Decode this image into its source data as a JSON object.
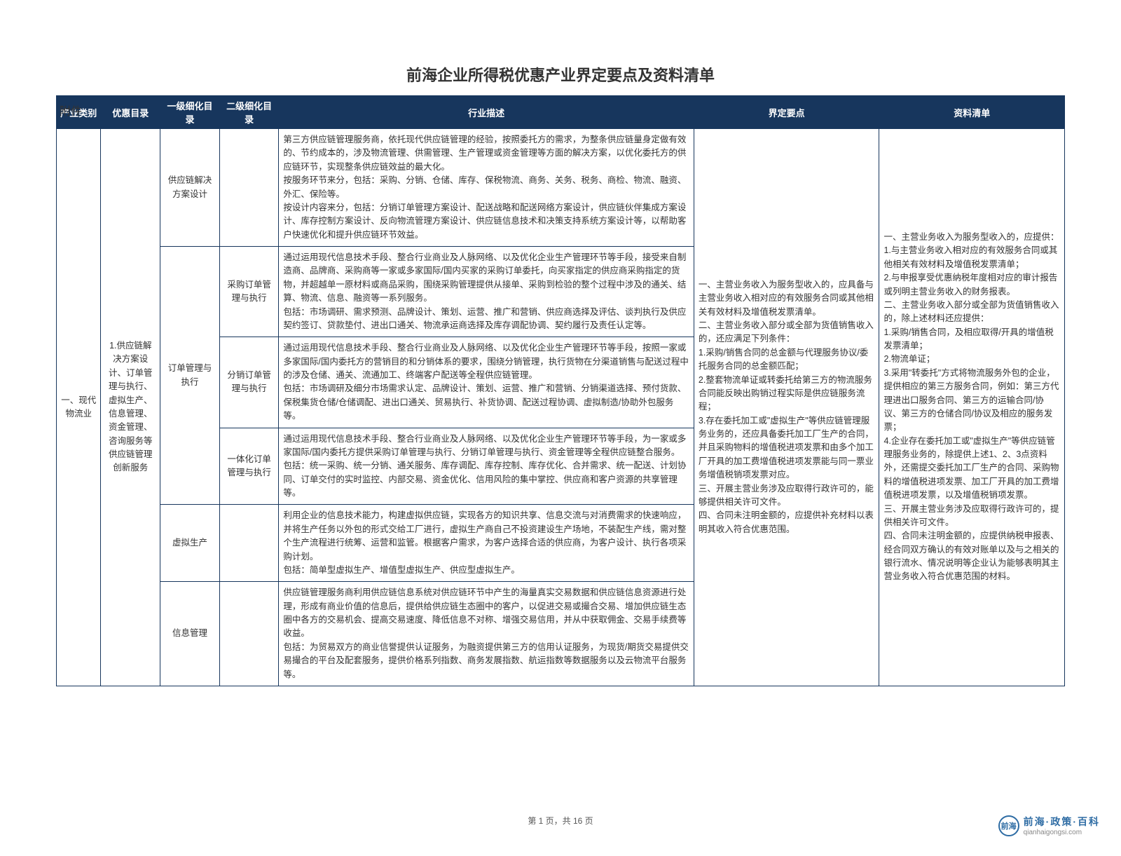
{
  "attachment_label": "附件",
  "title": "前海企业所得税优惠产业界定要点及资料清单",
  "header": {
    "col_category": "产业类别",
    "col_preference": "优惠目录",
    "col_level1": "一级细化目录",
    "col_level2": "二级细化目录",
    "col_desc": "行业描述",
    "col_keypoints": "界定要点",
    "col_docs": "资料清单"
  },
  "category": "一、现代物流业",
  "preference": "1.供应链解决方案设计、订单管理与执行、虚拟生产、信息管理、资金管理、咨询服务等供应链管理创新服务",
  "level1_a": "供应链解决方案设计",
  "level1_b": "订单管理与执行",
  "level1_c": "虚拟生产",
  "level1_d": "信息管理",
  "level2_b1": "采购订单管理与执行",
  "level2_b2": "分销订单管理与执行",
  "level2_b3": "一体化订单管理与执行",
  "desc_a": "第三方供应链管理服务商，依托现代供应链管理的经验，按照委托方的需求，为整条供应链量身定做有效的、节约成本的，涉及物流管理、供需管理、生产管理或资金管理等方面的解决方案，以优化委托方的供应链环节，实现整条供应链效益的最大化。\n按服务环节来分，包括：采购、分销、仓储、库存、保税物流、商务、关务、税务、商检、物流、融资、外汇、保险等。\n按设计内容来分，包括：分销订单管理方案设计、配送战略和配送网络方案设计，供应链伙伴集成方案设计、库存控制方案设计、反向物流管理方案设计、供应链信息技术和决策支持系统方案设计等，以帮助客户快速优化和提升供应链环节效益。",
  "desc_b1": "通过运用现代信息技术手段、整合行业商业及人脉网络、以及优化企业生产管理环节等手段，接受来自制造商、品牌商、采购商等一家或多家国际/国内买家的采购订单委托，向买家指定的供应商采购指定的货物，并超越单一原材料或商品采购，围绕采购管理提供从接单、采购到检验的整个过程中涉及的通关、结算、物流、信息、融资等一系列服务。\n包括：市场调研、需求预测、品牌设计、策划、运营、推广和营销、供应商选择及评估、谈判执行及供应契约签订、贷款垫付、进出口通关、物流承运商选择及库存调配协调、契约履行及责任认定等。",
  "desc_b2": "通过运用现代信息技术手段、整合行业商业及人脉网络、以及优化企业生产管理环节等手段，按照一家或多家国际/国内委托方的营销目的和分销体系的要求，围绕分销管理，执行货物在分渠道销售与配送过程中的涉及仓储、通关、流通加工、终端客户配送等全程供应链管理。\n包括：市场调研及细分市场需求认定、品牌设计、策划、运营、推广和营销、分销渠道选择、预付货款、保税集货仓储/仓储调配、进出口通关、贸易执行、补货协调、配送过程协调、虚拟制造/协助外包服务等。",
  "desc_b3": "通过运用现代信息技术手段、整合行业商业及人脉网络、以及优化企业生产管理环节等手段，为一家或多家国际/国内委托方提供采购订单管理与执行、分销订单管理与执行、资金管理等全程供应链整合服务。\n包括：统一采购、统一分销、通关服务、库存调配、库存控制、库存优化、合并需求、统一配送、计划协同、订单交付的实时监控、内部交易、资金优化、信用风险的集中掌控、供应商和客户资源的共享管理等。",
  "desc_c": "利用企业的信息技术能力，构建虚拟供应链，实现各方的知识共享、信息交流与对消费需求的快速响应，并将生产任务以外包的形式交给工厂进行，虚拟生产商自己不投资建设生产场地，不装配生产线，需对整个生产流程进行统筹、运营和监管。根据客户需求，为客户选择合适的供应商，为客户设计、执行各项采购计划。\n包括：简单型虚拟生产、增值型虚拟生产、供应型虚拟生产。",
  "desc_d": "供应链管理服务商利用供应链信息系统对供应链环节中产生的海量真实交易数据和供应链信息资源进行处理，形成有商业价值的信息后，提供给供应链生态圈中的客户，以促进交易或撮合交易、增加供应链生态圈中各方的交易机会、提高交易速度、降低信息不对称、增强交易信用，并从中获取佣金、交易手续费等收益。\n包括：为贸易双方的商业信誉提供认证服务，为融资提供第三方的信用认证服务，为现货/期货交易提供交易撮合的平台及配套服务，提供价格系列指数、商务发展指数、航运指数等数据服务以及云物流平台服务等。",
  "keypoints": "一、主营业务收入为服务型收入的，应具备与主营业务收入相对应的有效服务合同或其他相关有效材料及增值税发票清单。\n二、主营业务收入部分或全部为货值销售收入的，还应满足下列条件：\n1.采购/销售合同的总金额与代理服务协议/委托服务合同的总金额匹配；\n2.整套物流单证或转委托给第三方的物流服务合同能反映出购销过程实际是供应链服务流程；\n3.存在委托加工或\"虚拟生产\"等供应链管理服务业务的，还应具备委托加工厂生产的合同，并且采购物料的增值税进项发票和由多个加工厂开具的加工费增值税进项发票能与同一票业务增值税销项发票对应。\n三、开展主营业务涉及应取得行政许可的，能够提供相关许可文件。\n四、合同未注明金额的，应提供补充材料以表明其收入符合优惠范围。",
  "docs": "一、主营业务收入为服务型收入的，应提供：\n1.与主营业务收入相对应的有效服务合同或其他相关有效材料及增值税发票清单；\n2.与申报享受优惠纳税年度相对应的审计报告或列明主营业务收入的财务报表。\n二、主营业务收入部分或全部为货值销售收入的，除上述材料还应提供：\n1.采购/销售合同，及相应取得/开具的增值税发票清单；\n2.物流单证；\n3.采用\"转委托\"方式将物流服务外包的企业，提供相应的第三方服务合同，例如：第三方代理进出口服务合同、第三方的运输合同/协议、第三方的仓储合同/协议及相应的服务发票；\n4.企业存在委托加工或\"虚拟生产\"等供应链管理服务业务的，除提供上述1、2、3点资料外，还需提交委托加工厂生产的合同、采购物料的增值税进项发票、加工厂开具的加工费增值税进项发票，以及增值税销项发票。\n三、开展主营业务涉及应取得行政许可的，提供相关许可文件。\n四、合同未注明金额的，应提供纳税申报表、经合同双方确认的有效对账单以及与之相关的银行流水、情况说明等企业认为能够表明其主营业务收入符合优惠范围的材料。",
  "footer": "第 1 页，共 16 页",
  "watermark": {
    "brand": "前海·政策·百科",
    "url": "qianhaigongsi.com",
    "logo_text": "前海"
  },
  "colors": {
    "header_bg": "#17365d",
    "header_fg": "#ffffff",
    "border": "#17365d",
    "brand": "#2e6ca4"
  }
}
